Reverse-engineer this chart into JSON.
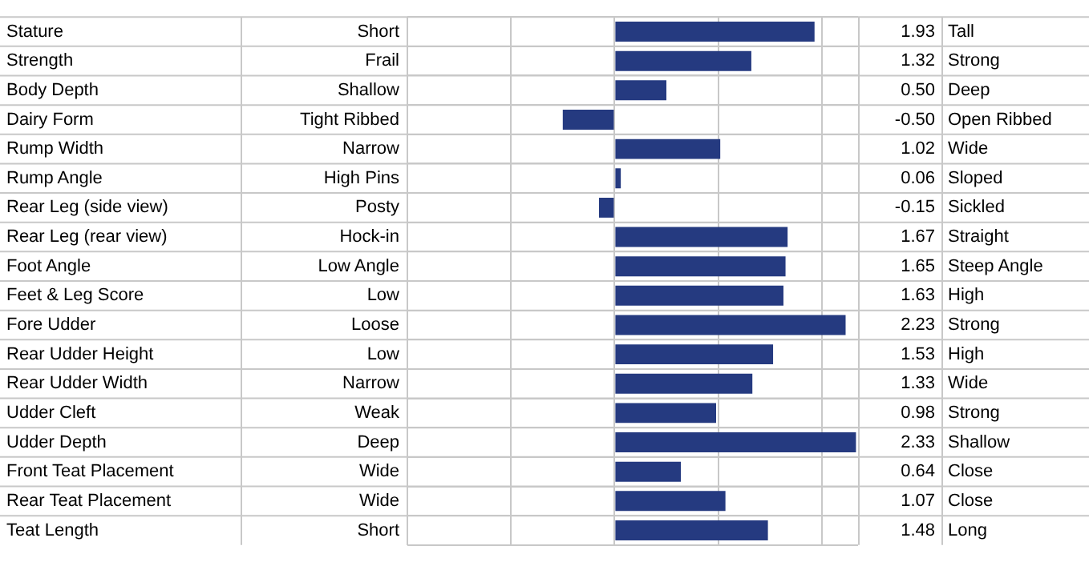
{
  "chart_data": {
    "type": "bar",
    "orientation": "horizontal",
    "color": "#253a80",
    "categories": [
      "Stature",
      "Strength",
      "Body Depth",
      "Dairy Form",
      "Rump Width",
      "Rump Angle",
      "Rear Leg (side view)",
      "Rear Leg (rear view)",
      "Foot Angle",
      "Feet & Leg Score",
      "Fore Udder",
      "Rear Udder Height",
      "Rear Udder Width",
      "Udder Cleft",
      "Udder Depth",
      "Front Teat Placement",
      "Rear Teat Placement",
      "Teat Length"
    ],
    "values": [
      1.93,
      1.32,
      0.5,
      -0.5,
      1.02,
      0.06,
      -0.15,
      1.67,
      1.65,
      1.63,
      2.23,
      1.53,
      1.33,
      0.98,
      2.33,
      0.64,
      1.07,
      1.48
    ],
    "value_labels": [
      "1.93",
      "1.32",
      "0.50",
      "-0.50",
      "1.02",
      "0.06",
      "-0.15",
      "1.67",
      "1.65",
      "1.63",
      "2.23",
      "1.53",
      "1.33",
      "0.98",
      "2.33",
      "0.64",
      "1.07",
      "1.48"
    ],
    "xlim": [
      -2,
      2.35
    ],
    "xticks": [
      {
        "value": -2,
        "label": null
      },
      {
        "value": -1,
        "label": null
      },
      {
        "value": 0,
        "label": null
      },
      {
        "value": 1,
        "label": null
      },
      {
        "value": 2,
        "label": null
      }
    ],
    "grid": true,
    "tick_labels": "y",
    "annotations": [
      "Short",
      "Tall",
      "Frail",
      "Strong",
      "Shallow",
      "Deep",
      "Tight Ribbed",
      "Open Ribbed",
      "Narrow",
      "Wide",
      "High Pins",
      "Sloped",
      "Posty",
      "Sickled",
      "Hock-in",
      "Straight",
      "Low Angle",
      "Steep Angle",
      "Low",
      "High",
      "Loose",
      "Strong",
      "Low",
      "High",
      "Narrow",
      "Wide",
      "Weak",
      "Strong",
      "Deep",
      "Shallow",
      "Wide",
      "Close",
      "Wide",
      "Close",
      "Short",
      "Long"
    ]
  }
}
